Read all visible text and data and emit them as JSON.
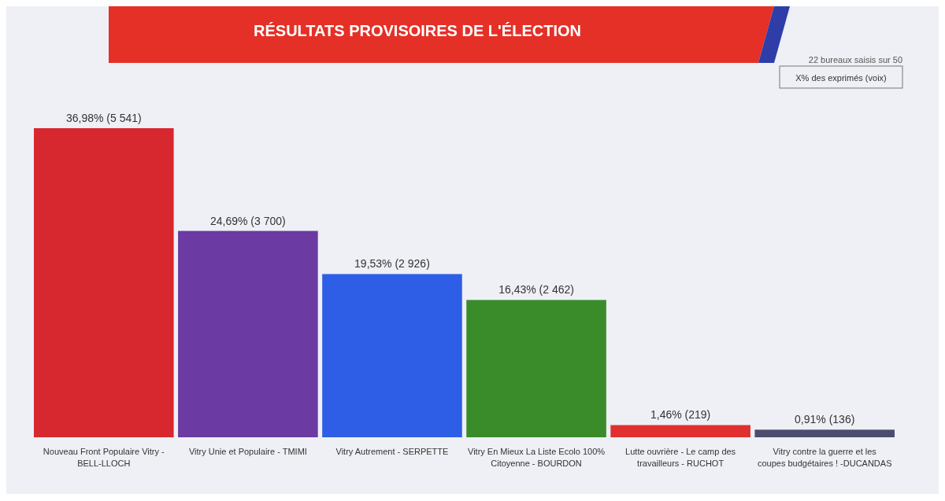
{
  "chart_data": {
    "type": "bar",
    "title": "RÉSULTATS PROVISOIRES DE L'ÉLECTION",
    "categories": [
      "Nouveau Front Populaire Vitry - BELL-LLOCH",
      "Vitry Unie et Populaire - TMIMI",
      "Vitry Autrement - SERPETTE",
      "Vitry En Mieux La Liste Ecolo 100% Citoyenne - BOURDON",
      "Lutte ouvrière - Le camp des travailleurs - RUCHOT",
      "Vitry contre la guerre et les coupes budgétaires ! -DUCANDAS"
    ],
    "values": [
      36.98,
      24.69,
      19.53,
      16.43,
      1.46,
      0.91
    ],
    "colors": [
      "#d7282f",
      "#6b3aa3",
      "#2f5ee6",
      "#3a8c2b",
      "#e0302f",
      "#4b4d6e"
    ],
    "value_labels": [
      "36,98% (5 541)",
      "24,69% (3 700)",
      "19,53% (2 926)",
      "16,43% (2 462)",
      "1,46% (219)",
      "0,91% (136)"
    ],
    "annotations": [
      "22 bureaux saisis sur 50",
      "X% des exprimés (voix)"
    ]
  }
}
